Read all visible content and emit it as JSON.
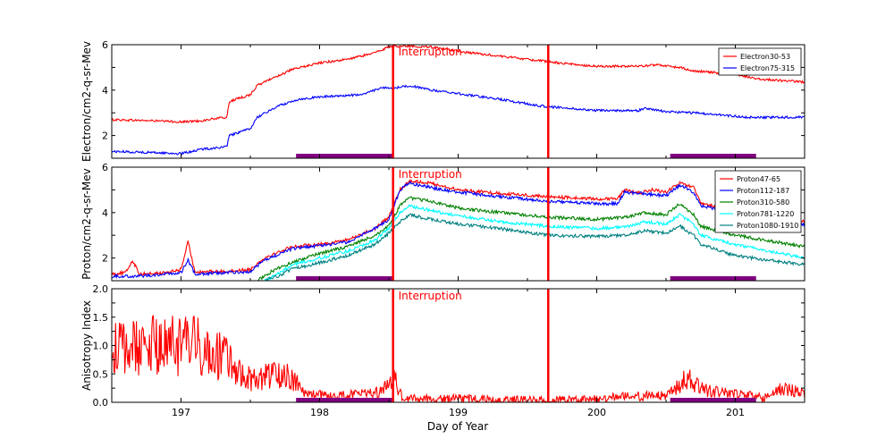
{
  "figure": {
    "xlabel": "Day of Year"
  },
  "chart_data": [
    {
      "type": "line",
      "ylabel": "Electron/cm2-q-sr-Mev",
      "xlim": [
        196.5,
        201.5
      ],
      "ylim": [
        1,
        6
      ],
      "x_ticks": [
        197,
        198,
        199,
        200,
        201
      ],
      "y_ticks": [
        2,
        4,
        6
      ],
      "legend_position": "top-right",
      "annotation": "Interruption",
      "interruption_lines": [
        198.53,
        199.65
      ],
      "shaded_intervals": [
        [
          197.83,
          198.53
        ],
        [
          200.53,
          201.15
        ]
      ],
      "series": [
        {
          "name": "Electron30-53",
          "color": "#ff0000",
          "noise": 0.05,
          "points": [
            [
              196.5,
              2.7
            ],
            [
              196.8,
              2.65
            ],
            [
              197.0,
              2.6
            ],
            [
              197.15,
              2.65
            ],
            [
              197.25,
              2.75
            ],
            [
              197.33,
              2.8
            ],
            [
              197.35,
              3.5
            ],
            [
              197.5,
              3.8
            ],
            [
              197.55,
              4.2
            ],
            [
              197.65,
              4.5
            ],
            [
              197.8,
              4.9
            ],
            [
              198.0,
              5.2
            ],
            [
              198.2,
              5.35
            ],
            [
              198.4,
              5.65
            ],
            [
              198.5,
              5.9
            ],
            [
              198.6,
              5.95
            ],
            [
              198.8,
              5.9
            ],
            [
              199.0,
              5.7
            ],
            [
              199.3,
              5.5
            ],
            [
              199.65,
              5.25
            ],
            [
              199.8,
              5.15
            ],
            [
              200.0,
              5.05
            ],
            [
              200.25,
              5.05
            ],
            [
              200.45,
              5.1
            ],
            [
              200.6,
              5.0
            ],
            [
              200.7,
              4.85
            ],
            [
              200.9,
              4.75
            ],
            [
              201.0,
              4.7
            ],
            [
              201.15,
              4.5
            ],
            [
              201.5,
              4.35
            ]
          ]
        },
        {
          "name": "Electron75-315",
          "color": "#0000ff",
          "noise": 0.05,
          "points": [
            [
              196.5,
              1.3
            ],
            [
              196.8,
              1.25
            ],
            [
              197.0,
              1.2
            ],
            [
              197.15,
              1.4
            ],
            [
              197.33,
              1.5
            ],
            [
              197.35,
              2.0
            ],
            [
              197.5,
              2.3
            ],
            [
              197.55,
              2.8
            ],
            [
              197.7,
              3.3
            ],
            [
              197.85,
              3.6
            ],
            [
              198.0,
              3.7
            ],
            [
              198.3,
              3.8
            ],
            [
              198.45,
              4.1
            ],
            [
              198.55,
              4.1
            ],
            [
              198.65,
              4.2
            ],
            [
              198.8,
              4.0
            ],
            [
              199.0,
              3.85
            ],
            [
              199.3,
              3.6
            ],
            [
              199.6,
              3.3
            ],
            [
              200.0,
              3.1
            ],
            [
              200.3,
              3.1
            ],
            [
              200.35,
              3.2
            ],
            [
              200.5,
              3.05
            ],
            [
              200.7,
              3.0
            ],
            [
              200.9,
              2.9
            ],
            [
              201.1,
              2.8
            ],
            [
              201.5,
              2.8
            ]
          ]
        }
      ]
    },
    {
      "type": "line",
      "ylabel": "Proton/cm2-q-sr-Mev",
      "xlim": [
        196.5,
        201.5
      ],
      "ylim": [
        1,
        6
      ],
      "x_ticks": [
        197,
        198,
        199,
        200,
        201
      ],
      "y_ticks": [
        2,
        4,
        6
      ],
      "legend_position": "top-right",
      "annotation": "Interruption",
      "interruption_lines": [
        198.53,
        199.65
      ],
      "shaded_intervals": [
        [
          197.83,
          198.53
        ],
        [
          200.53,
          201.15
        ]
      ],
      "series": [
        {
          "name": "Proton47-65",
          "color": "#ff0000",
          "noise": 0.07,
          "points": [
            [
              196.5,
              1.3
            ],
            [
              196.6,
              1.35
            ],
            [
              196.65,
              1.9
            ],
            [
              196.7,
              1.3
            ],
            [
              196.9,
              1.35
            ],
            [
              197.0,
              1.5
            ],
            [
              197.05,
              2.7
            ],
            [
              197.1,
              1.4
            ],
            [
              197.3,
              1.4
            ],
            [
              197.5,
              1.5
            ],
            [
              197.6,
              2.0
            ],
            [
              197.8,
              2.5
            ],
            [
              198.0,
              2.6
            ],
            [
              198.2,
              2.8
            ],
            [
              198.4,
              3.3
            ],
            [
              198.5,
              3.8
            ],
            [
              198.58,
              5.0
            ],
            [
              198.65,
              5.4
            ],
            [
              198.8,
              5.3
            ],
            [
              199.0,
              5.0
            ],
            [
              199.3,
              4.85
            ],
            [
              199.65,
              4.7
            ],
            [
              200.0,
              4.6
            ],
            [
              200.15,
              4.6
            ],
            [
              200.2,
              5.0
            ],
            [
              200.3,
              4.85
            ],
            [
              200.4,
              5.0
            ],
            [
              200.5,
              4.9
            ],
            [
              200.6,
              5.3
            ],
            [
              200.7,
              5.1
            ],
            [
              200.75,
              4.4
            ],
            [
              200.9,
              4.2
            ],
            [
              201.0,
              4.0
            ],
            [
              201.2,
              3.7
            ],
            [
              201.5,
              3.6
            ]
          ]
        },
        {
          "name": "Proton112-187",
          "color": "#0000ff",
          "noise": 0.07,
          "points": [
            [
              196.5,
              1.2
            ],
            [
              196.7,
              1.2
            ],
            [
              197.0,
              1.35
            ],
            [
              197.05,
              1.9
            ],
            [
              197.1,
              1.3
            ],
            [
              197.5,
              1.4
            ],
            [
              197.6,
              1.9
            ],
            [
              197.8,
              2.4
            ],
            [
              198.0,
              2.55
            ],
            [
              198.2,
              2.7
            ],
            [
              198.4,
              3.3
            ],
            [
              198.5,
              3.7
            ],
            [
              198.58,
              5.0
            ],
            [
              198.65,
              5.3
            ],
            [
              198.8,
              5.1
            ],
            [
              199.0,
              4.9
            ],
            [
              199.3,
              4.7
            ],
            [
              199.65,
              4.5
            ],
            [
              200.0,
              4.4
            ],
            [
              200.15,
              4.4
            ],
            [
              200.2,
              4.9
            ],
            [
              200.4,
              4.8
            ],
            [
              200.5,
              4.75
            ],
            [
              200.6,
              5.2
            ],
            [
              200.7,
              4.9
            ],
            [
              200.75,
              4.3
            ],
            [
              200.9,
              4.1
            ],
            [
              201.0,
              3.8
            ],
            [
              201.2,
              3.5
            ],
            [
              201.5,
              3.5
            ]
          ]
        },
        {
          "name": "Proton310-580",
          "color": "#008000",
          "noise": 0.07,
          "points": [
            [
              197.55,
              1.0
            ],
            [
              197.65,
              1.4
            ],
            [
              197.8,
              1.8
            ],
            [
              198.0,
              2.2
            ],
            [
              198.2,
              2.5
            ],
            [
              198.4,
              3.0
            ],
            [
              198.5,
              3.4
            ],
            [
              198.58,
              4.3
            ],
            [
              198.65,
              4.65
            ],
            [
              198.8,
              4.5
            ],
            [
              199.0,
              4.2
            ],
            [
              199.3,
              4.0
            ],
            [
              199.65,
              3.8
            ],
            [
              200.0,
              3.7
            ],
            [
              200.2,
              3.8
            ],
            [
              200.35,
              4.0
            ],
            [
              200.5,
              3.9
            ],
            [
              200.6,
              4.4
            ],
            [
              200.7,
              3.9
            ],
            [
              200.75,
              3.4
            ],
            [
              201.0,
              3.0
            ],
            [
              201.5,
              2.5
            ]
          ]
        },
        {
          "name": "Proton781-1220",
          "color": "#00ffff",
          "noise": 0.07,
          "points": [
            [
              197.6,
              1.0
            ],
            [
              197.7,
              1.3
            ],
            [
              197.8,
              1.7
            ],
            [
              198.0,
              2.0
            ],
            [
              198.2,
              2.3
            ],
            [
              198.4,
              2.8
            ],
            [
              198.5,
              3.3
            ],
            [
              198.58,
              4.0
            ],
            [
              198.65,
              4.3
            ],
            [
              198.8,
              4.1
            ],
            [
              199.0,
              3.85
            ],
            [
              199.3,
              3.6
            ],
            [
              199.65,
              3.4
            ],
            [
              200.0,
              3.3
            ],
            [
              200.2,
              3.35
            ],
            [
              200.35,
              3.6
            ],
            [
              200.5,
              3.5
            ],
            [
              200.6,
              3.9
            ],
            [
              200.7,
              3.5
            ],
            [
              200.75,
              3.0
            ],
            [
              201.0,
              2.6
            ],
            [
              201.5,
              2.0
            ]
          ]
        },
        {
          "name": "Proton1080-1910",
          "color": "#008080",
          "noise": 0.07,
          "points": [
            [
              197.6,
              1.0
            ],
            [
              197.7,
              1.2
            ],
            [
              197.8,
              1.5
            ],
            [
              198.0,
              1.8
            ],
            [
              198.2,
              2.1
            ],
            [
              198.4,
              2.6
            ],
            [
              198.5,
              3.1
            ],
            [
              198.58,
              3.6
            ],
            [
              198.65,
              3.9
            ],
            [
              198.8,
              3.7
            ],
            [
              199.0,
              3.5
            ],
            [
              199.3,
              3.3
            ],
            [
              199.65,
              3.0
            ],
            [
              200.0,
              2.95
            ],
            [
              200.2,
              3.0
            ],
            [
              200.35,
              3.2
            ],
            [
              200.5,
              3.1
            ],
            [
              200.6,
              3.4
            ],
            [
              200.7,
              3.0
            ],
            [
              200.75,
              2.6
            ],
            [
              201.0,
              2.1
            ],
            [
              201.5,
              1.7
            ]
          ]
        }
      ]
    },
    {
      "type": "line",
      "ylabel": "Anisotropy Index",
      "xlim": [
        196.5,
        201.5
      ],
      "ylim": [
        0,
        2.0
      ],
      "x_ticks": [
        197,
        198,
        199,
        200,
        201
      ],
      "y_ticks": [
        0.0,
        0.5,
        1.0,
        1.5,
        2.0
      ],
      "tick_format": "fixed1",
      "annotation": "Interruption",
      "interruption_lines": [
        198.53,
        199.65
      ],
      "shaded_intervals": [
        [
          197.83,
          198.53
        ],
        [
          200.53,
          201.15
        ]
      ],
      "series": [
        {
          "color": "#ff0000",
          "noise": 0.55,
          "nonneg": true,
          "points": [
            [
              196.5,
              0.9
            ],
            [
              196.7,
              1.0
            ],
            [
              196.9,
              1.0
            ],
            [
              197.1,
              1.0
            ],
            [
              197.3,
              0.8
            ],
            [
              197.5,
              0.4
            ],
            [
              197.7,
              0.5
            ],
            [
              197.8,
              0.45
            ],
            [
              197.9,
              0.15
            ],
            [
              198.1,
              0.1
            ],
            [
              198.3,
              0.15
            ],
            [
              198.45,
              0.2
            ],
            [
              198.5,
              0.3
            ],
            [
              198.53,
              0.45
            ],
            [
              198.6,
              0.08
            ],
            [
              198.8,
              0.05
            ],
            [
              199.0,
              0.06
            ],
            [
              199.3,
              0.03
            ],
            [
              199.65,
              0.03
            ],
            [
              199.9,
              0.06
            ],
            [
              200.2,
              0.1
            ],
            [
              200.5,
              0.12
            ],
            [
              200.65,
              0.4
            ],
            [
              200.8,
              0.2
            ],
            [
              201.0,
              0.15
            ],
            [
              201.2,
              0.08
            ],
            [
              201.35,
              0.25
            ],
            [
              201.5,
              0.15
            ]
          ]
        }
      ]
    }
  ]
}
